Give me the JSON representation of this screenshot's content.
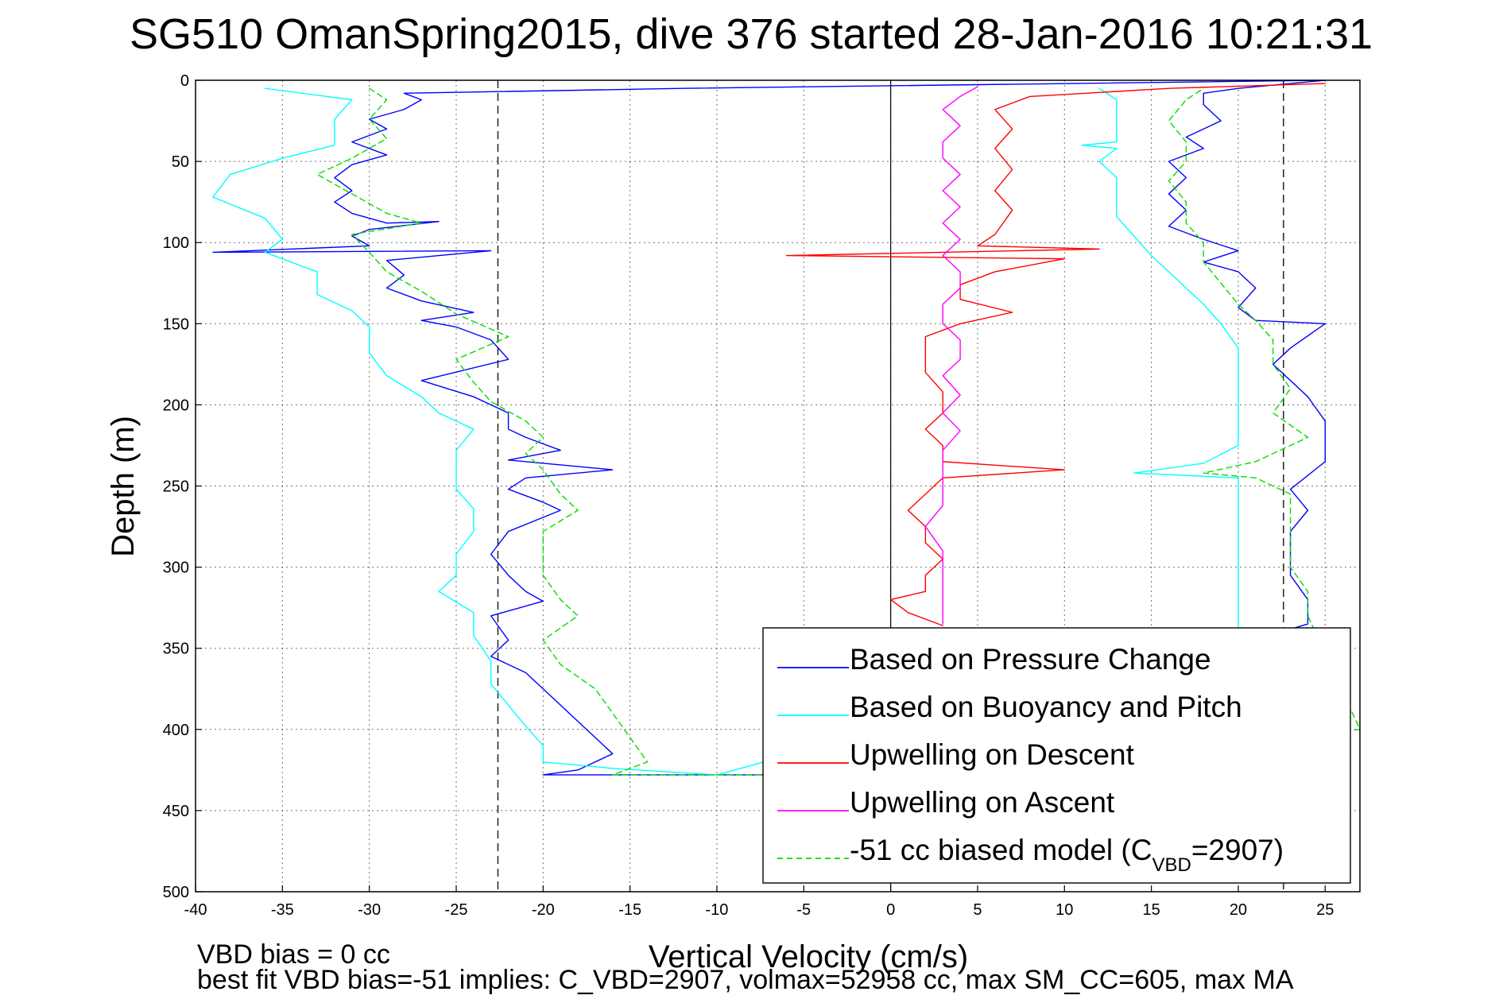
{
  "window": {
    "width": 1891,
    "height": 1262
  },
  "chart_data": {
    "type": "line",
    "title": "SG510 OmanSpring2015, dive 376 started 28-Jan-2016 10:21:31",
    "xlabel": "Vertical Velocity (cm/s)",
    "ylabel": "Depth (m)",
    "xlim": [
      -40,
      27
    ],
    "ylim": [
      0,
      500
    ],
    "y_reversed": true,
    "xticks": [
      -40,
      -35,
      -30,
      -25,
      -20,
      -15,
      -10,
      -5,
      0,
      5,
      10,
      15,
      20,
      25
    ],
    "yticks": [
      0,
      50,
      100,
      150,
      200,
      250,
      300,
      350,
      400,
      450,
      500
    ],
    "grid": true,
    "legend_position": "lower-right",
    "reference_lines": [
      {
        "type": "vertical",
        "x": -22.6,
        "style": "dashed",
        "color": "#333333"
      },
      {
        "type": "vertical",
        "x": 22.6,
        "style": "dashed",
        "color": "#333333"
      },
      {
        "type": "vertical",
        "x": 0,
        "style": "solid",
        "color": "#000000"
      }
    ],
    "series": [
      {
        "name": "Based on Pressure Change",
        "color": "#0000ff",
        "style": "solid",
        "points": [
          [
            25,
            0
          ],
          [
            -12,
            5
          ],
          [
            -28,
            8
          ],
          [
            -27,
            12
          ],
          [
            -28,
            18
          ],
          [
            -30,
            24
          ],
          [
            -29,
            30
          ],
          [
            -31,
            38
          ],
          [
            -29,
            46
          ],
          [
            -31,
            52
          ],
          [
            -32,
            60
          ],
          [
            -31,
            68
          ],
          [
            -32,
            75
          ],
          [
            -31,
            82
          ],
          [
            -29,
            88
          ],
          [
            -26,
            87
          ],
          [
            -30,
            92
          ],
          [
            -31,
            96
          ],
          [
            -30,
            102
          ],
          [
            -39,
            106
          ],
          [
            -23,
            105
          ],
          [
            -29,
            111
          ],
          [
            -28,
            120
          ],
          [
            -29,
            128
          ],
          [
            -27,
            136
          ],
          [
            -24,
            143
          ],
          [
            -27,
            148
          ],
          [
            -25,
            152
          ],
          [
            -23,
            160
          ],
          [
            -22,
            172
          ],
          [
            -27,
            185
          ],
          [
            -24,
            195
          ],
          [
            -22,
            205
          ],
          [
            -22,
            215
          ],
          [
            -21,
            220
          ],
          [
            -19,
            228
          ],
          [
            -22,
            234
          ],
          [
            -16,
            240
          ],
          [
            -21,
            245
          ],
          [
            -22,
            252
          ],
          [
            -20,
            260
          ],
          [
            -19,
            265
          ],
          [
            -22,
            278
          ],
          [
            -23,
            292
          ],
          [
            -22,
            305
          ],
          [
            -21,
            315
          ],
          [
            -20,
            321
          ],
          [
            -23,
            330
          ],
          [
            -22,
            345
          ],
          [
            -23,
            355
          ],
          [
            -21,
            365
          ],
          [
            -20,
            375
          ],
          [
            -19,
            385
          ],
          [
            -18,
            395
          ],
          [
            -17,
            405
          ],
          [
            -16,
            415
          ],
          [
            -18,
            425
          ],
          [
            -20,
            428
          ],
          [
            -5,
            428
          ],
          [
            24,
            335
          ],
          [
            24,
            320
          ],
          [
            23,
            305
          ],
          [
            23,
            290
          ],
          [
            23,
            278
          ],
          [
            24,
            265
          ],
          [
            23,
            252
          ],
          [
            25,
            235
          ],
          [
            25,
            222
          ],
          [
            25,
            210
          ],
          [
            24,
            195
          ],
          [
            23,
            185
          ],
          [
            22,
            175
          ],
          [
            23,
            165
          ],
          [
            25,
            150
          ],
          [
            21,
            148
          ],
          [
            20,
            140
          ],
          [
            21,
            128
          ],
          [
            20,
            118
          ],
          [
            18,
            112
          ],
          [
            20,
            105
          ],
          [
            18,
            98
          ],
          [
            16,
            90
          ],
          [
            17,
            80
          ],
          [
            16,
            70
          ],
          [
            17,
            60
          ],
          [
            16,
            50
          ],
          [
            18,
            42
          ],
          [
            17,
            35
          ],
          [
            19,
            25
          ],
          [
            18,
            15
          ],
          [
            18,
            8
          ],
          [
            20,
            5
          ],
          [
            25,
            0
          ]
        ]
      },
      {
        "name": "Based on Buoyancy and Pitch",
        "color": "#00ffff",
        "style": "solid",
        "points": [
          [
            -36,
            5
          ],
          [
            -31,
            12
          ],
          [
            -32,
            24
          ],
          [
            -32,
            40
          ],
          [
            -35,
            48
          ],
          [
            -38,
            58
          ],
          [
            -39,
            72
          ],
          [
            -36,
            85
          ],
          [
            -35,
            98
          ],
          [
            -36,
            106
          ],
          [
            -33,
            118
          ],
          [
            -33,
            132
          ],
          [
            -31,
            142
          ],
          [
            -30,
            152
          ],
          [
            -30,
            168
          ],
          [
            -29,
            182
          ],
          [
            -27,
            195
          ],
          [
            -26,
            205
          ],
          [
            -24,
            215
          ],
          [
            -25,
            228
          ],
          [
            -25,
            240
          ],
          [
            -25,
            252
          ],
          [
            -24,
            264
          ],
          [
            -24,
            278
          ],
          [
            -25,
            292
          ],
          [
            -25,
            305
          ],
          [
            -26,
            315
          ],
          [
            -24,
            328
          ],
          [
            -24,
            342
          ],
          [
            -23,
            358
          ],
          [
            -23,
            372
          ],
          [
            -22,
            385
          ],
          [
            -21,
            398
          ],
          [
            -20,
            410
          ],
          [
            -20,
            420
          ],
          [
            -16,
            424
          ],
          [
            -10,
            428
          ],
          [
            20,
            340
          ],
          [
            20,
            320
          ],
          [
            20,
            300
          ],
          [
            20,
            280
          ],
          [
            20,
            260
          ],
          [
            20,
            245
          ],
          [
            14,
            242
          ],
          [
            18,
            236
          ],
          [
            20,
            225
          ],
          [
            20,
            210
          ],
          [
            20,
            195
          ],
          [
            20,
            180
          ],
          [
            20,
            165
          ],
          [
            19,
            150
          ],
          [
            18,
            138
          ],
          [
            17,
            128
          ],
          [
            16,
            118
          ],
          [
            15,
            108
          ],
          [
            14,
            96
          ],
          [
            13,
            84
          ],
          [
            13,
            72
          ],
          [
            13,
            60
          ],
          [
            12,
            50
          ],
          [
            13,
            42
          ],
          [
            11,
            40
          ],
          [
            13,
            38
          ],
          [
            13,
            25
          ],
          [
            13,
            12
          ],
          [
            12,
            5
          ]
        ]
      },
      {
        "name": "Upwelling on Descent",
        "color": "#ff0000",
        "style": "solid",
        "points": [
          [
            25,
            2
          ],
          [
            16,
            5
          ],
          [
            8,
            10
          ],
          [
            6,
            18
          ],
          [
            7,
            30
          ],
          [
            6,
            42
          ],
          [
            7,
            55
          ],
          [
            6,
            68
          ],
          [
            7,
            80
          ],
          [
            6,
            95
          ],
          [
            5,
            102
          ],
          [
            12,
            104
          ],
          [
            -6,
            108
          ],
          [
            10,
            110
          ],
          [
            6,
            118
          ],
          [
            4,
            126
          ],
          [
            4,
            135
          ],
          [
            7,
            143
          ],
          [
            4,
            150
          ],
          [
            2,
            158
          ],
          [
            2,
            168
          ],
          [
            2,
            180
          ],
          [
            3,
            192
          ],
          [
            3,
            205
          ],
          [
            2,
            215
          ],
          [
            3,
            225
          ],
          [
            3,
            235
          ],
          [
            10,
            240
          ],
          [
            3,
            245
          ],
          [
            2,
            255
          ],
          [
            1,
            265
          ],
          [
            2,
            275
          ],
          [
            2,
            285
          ],
          [
            3,
            295
          ],
          [
            2,
            305
          ],
          [
            2,
            315
          ],
          [
            0,
            320
          ],
          [
            1,
            328
          ],
          [
            3,
            336
          ]
        ]
      },
      {
        "name": "Upwelling on Ascent",
        "color": "#ff00ff",
        "style": "solid",
        "points": [
          [
            3,
            335
          ],
          [
            3,
            320
          ],
          [
            3,
            305
          ],
          [
            3,
            290
          ],
          [
            2,
            275
          ],
          [
            3,
            262
          ],
          [
            3,
            250
          ],
          [
            3,
            240
          ],
          [
            3,
            228
          ],
          [
            4,
            216
          ],
          [
            3,
            205
          ],
          [
            4,
            194
          ],
          [
            3,
            182
          ],
          [
            4,
            172
          ],
          [
            4,
            160
          ],
          [
            3,
            150
          ],
          [
            3,
            138
          ],
          [
            4,
            128
          ],
          [
            4,
            118
          ],
          [
            3,
            108
          ],
          [
            4,
            98
          ],
          [
            3,
            88
          ],
          [
            4,
            78
          ],
          [
            3,
            68
          ],
          [
            4,
            58
          ],
          [
            3,
            48
          ],
          [
            3,
            38
          ],
          [
            4,
            28
          ],
          [
            3,
            18
          ],
          [
            4,
            10
          ],
          [
            5,
            4
          ]
        ]
      },
      {
        "name": "-51 cc biased model",
        "color": "#00dd00",
        "style": "dashed",
        "points": [
          [
            -30,
            5
          ],
          [
            -29,
            12
          ],
          [
            -30,
            24
          ],
          [
            -29,
            36
          ],
          [
            -31,
            48
          ],
          [
            -33,
            58
          ],
          [
            -31,
            70
          ],
          [
            -29,
            82
          ],
          [
            -27,
            88
          ],
          [
            -31,
            95
          ],
          [
            -30,
            106
          ],
          [
            -29,
            118
          ],
          [
            -27,
            130
          ],
          [
            -25,
            144
          ],
          [
            -22,
            158
          ],
          [
            -25,
            172
          ],
          [
            -24,
            186
          ],
          [
            -23,
            198
          ],
          [
            -21,
            210
          ],
          [
            -20,
            220
          ],
          [
            -21,
            230
          ],
          [
            -20,
            240
          ],
          [
            -19,
            255
          ],
          [
            -18,
            265
          ],
          [
            -20,
            278
          ],
          [
            -20,
            292
          ],
          [
            -20,
            305
          ],
          [
            -19,
            320
          ],
          [
            -18,
            330
          ],
          [
            -20,
            345
          ],
          [
            -19,
            360
          ],
          [
            -17,
            375
          ],
          [
            -16,
            390
          ],
          [
            -15,
            405
          ],
          [
            -14,
            420
          ],
          [
            -16,
            428
          ],
          [
            -3,
            428
          ],
          [
            27,
            400
          ],
          [
            24,
            330
          ],
          [
            24,
            315
          ],
          [
            23,
            300
          ],
          [
            23,
            285
          ],
          [
            23,
            270
          ],
          [
            23,
            255
          ],
          [
            21,
            245
          ],
          [
            18,
            242
          ],
          [
            21,
            235
          ],
          [
            24,
            220
          ],
          [
            22,
            205
          ],
          [
            23,
            190
          ],
          [
            22,
            175
          ],
          [
            22,
            160
          ],
          [
            21,
            148
          ],
          [
            20,
            138
          ],
          [
            19,
            125
          ],
          [
            18,
            112
          ],
          [
            18,
            100
          ],
          [
            17,
            88
          ],
          [
            17,
            75
          ],
          [
            16,
            62
          ],
          [
            17,
            50
          ],
          [
            17,
            38
          ],
          [
            16,
            25
          ],
          [
            17,
            12
          ],
          [
            18,
            5
          ]
        ]
      }
    ],
    "legend": [
      {
        "label": "Based on Pressure Change",
        "color": "#0000ff",
        "style": "solid"
      },
      {
        "label": "Based on Buoyancy and Pitch",
        "color": "#00ffff",
        "style": "solid"
      },
      {
        "label": "Upwelling on Descent",
        "color": "#ff0000",
        "style": "solid"
      },
      {
        "label": "Upwelling on Ascent",
        "color": "#ff00ff",
        "style": "solid"
      },
      {
        "label": "-51 cc biased model (C",
        "subscript": "VBD",
        "suffix": "=2907)",
        "color": "#00dd00",
        "style": "dashed"
      }
    ],
    "annotations": [
      "VBD bias = 0 cc",
      "best fit VBD bias=-51 implies: C_VBD=2907, volmax=52958 cc, max SM_CC=605, max MA"
    ]
  }
}
